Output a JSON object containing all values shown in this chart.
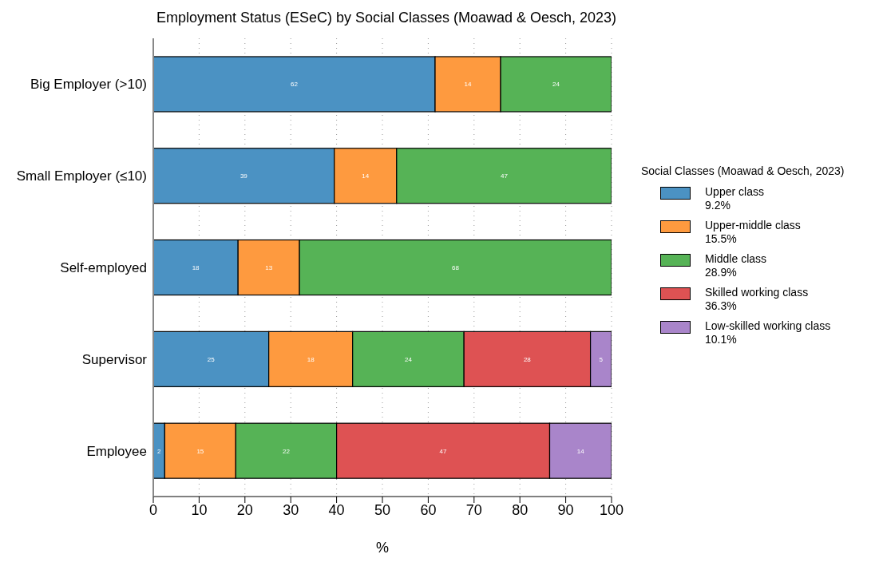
{
  "chart_data": {
    "type": "bar",
    "orientation": "horizontal",
    "stacked": true,
    "title": "Employment Status (ESeC) by Social Classes (Moawad & Oesch, 2023)",
    "xlabel": "%",
    "legend_title": "Social Classes (Moawad & Oesch, 2023)",
    "legend": "right",
    "grid": "x",
    "data_labels": false,
    "categories": [
      "Big Employer (>10)",
      "Small Employer (≤10)",
      "Self-employed",
      "Supervisor",
      "Employee"
    ],
    "xlim": [
      0,
      100
    ],
    "xticks": [
      0,
      10,
      20,
      30,
      40,
      50,
      60,
      70,
      80,
      90,
      100
    ],
    "series": [
      {
        "name": "Upper class\n9.2%",
        "color": "#4b92c3",
        "values": [
          61.5,
          39.5,
          18.5,
          25.2,
          2.5
        ],
        "value_labels": [
          "62",
          "39",
          "18",
          "25",
          "2"
        ]
      },
      {
        "name": "Upper-middle class\n15.5%",
        "color": "#fe9a3f",
        "values": [
          14.3,
          13.6,
          13.4,
          18.3,
          15.5
        ],
        "value_labels": [
          "14",
          "14",
          "13",
          "18",
          "15"
        ]
      },
      {
        "name": "Middle class\n28.9%",
        "color": "#56b356",
        "values": [
          24.2,
          46.9,
          68.1,
          24.3,
          22.0
        ],
        "value_labels": [
          "24",
          "47",
          "68",
          "24",
          "22"
        ]
      },
      {
        "name": "Skilled working class\n36.3%",
        "color": "#de5253",
        "values": [
          0,
          0,
          0,
          27.6,
          46.5
        ],
        "value_labels": [
          null,
          null,
          null,
          "28",
          "47"
        ]
      },
      {
        "name": "Low-skilled working class\n10.1%",
        "color": "#a985ca",
        "values": [
          0,
          0,
          0,
          4.6,
          13.5
        ],
        "value_labels": [
          null,
          null,
          null,
          "5",
          "14"
        ]
      }
    ]
  }
}
